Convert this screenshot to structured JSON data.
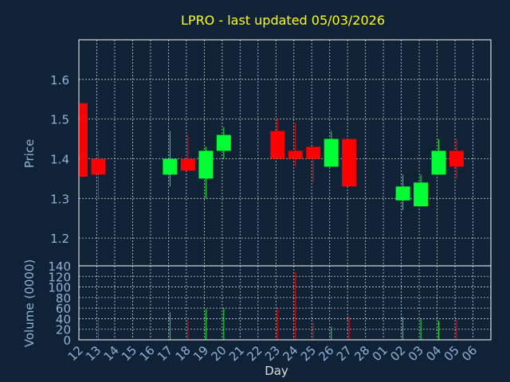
{
  "chart_data": {
    "type": "candlestick",
    "title": "LPRO - last updated 05/03/2026",
    "xlabel": "Day",
    "ylabel": "Price",
    "volume_label": "Volume (0000)",
    "grid": true,
    "colors": {
      "background": "#0f2236",
      "axis": "#ffffff",
      "grid": "#cccccc",
      "label": "#8fb3d9",
      "title": "#ffff00",
      "up": "#00ff33",
      "down": "#ff0000"
    },
    "price_axis": {
      "ylim": [
        1.13,
        1.7
      ],
      "ticks": [
        "1.2",
        "1.3",
        "1.4",
        "1.5",
        "1.6"
      ]
    },
    "volume_axis": {
      "ylim": [
        0,
        140
      ],
      "ticks": [
        "0",
        "20",
        "40",
        "60",
        "80",
        "100",
        "120",
        "140"
      ]
    },
    "x_ticks": [
      "12",
      "13",
      "14",
      "15",
      "16",
      "17",
      "18",
      "19",
      "20",
      "21",
      "22",
      "23",
      "24",
      "25",
      "26",
      "27",
      "28",
      "01",
      "02",
      "03",
      "04",
      "05",
      "06"
    ],
    "candles": [
      {
        "day": "12",
        "open": 1.54,
        "high": 1.54,
        "low": 1.355,
        "close": 1.355,
        "volume": 0
      },
      {
        "day": "13",
        "open": 1.4,
        "high": 1.42,
        "low": 1.3,
        "close": 1.36,
        "volume": 38
      },
      {
        "day": "17",
        "open": 1.36,
        "high": 1.47,
        "low": 1.33,
        "close": 1.4,
        "volume": 52
      },
      {
        "day": "18",
        "open": 1.4,
        "high": 1.46,
        "low": 1.37,
        "close": 1.37,
        "volume": 36
      },
      {
        "day": "19",
        "open": 1.35,
        "high": 1.43,
        "low": 1.3,
        "close": 1.42,
        "volume": 58
      },
      {
        "day": "20",
        "open": 1.42,
        "high": 1.48,
        "low": 1.4,
        "close": 1.46,
        "volume": 60
      },
      {
        "day": "23",
        "open": 1.47,
        "high": 1.5,
        "low": 1.4,
        "close": 1.4,
        "volume": 58
      },
      {
        "day": "24",
        "open": 1.42,
        "high": 1.49,
        "low": 1.38,
        "close": 1.4,
        "volume": 128
      },
      {
        "day": "25",
        "open": 1.43,
        "high": 1.43,
        "low": 1.34,
        "close": 1.4,
        "volume": 33
      },
      {
        "day": "26",
        "open": 1.38,
        "high": 1.47,
        "low": 1.38,
        "close": 1.45,
        "volume": 25
      },
      {
        "day": "27",
        "open": 1.45,
        "high": 1.45,
        "low": 1.33,
        "close": 1.33,
        "volume": 43
      },
      {
        "day": "02",
        "open": 1.295,
        "high": 1.36,
        "low": 1.27,
        "close": 1.33,
        "volume": 43
      },
      {
        "day": "03",
        "open": 1.28,
        "high": 1.36,
        "low": 1.28,
        "close": 1.34,
        "volume": 40
      },
      {
        "day": "04",
        "open": 1.36,
        "high": 1.45,
        "low": 1.36,
        "close": 1.42,
        "volume": 36
      },
      {
        "day": "05",
        "open": 1.42,
        "high": 1.45,
        "low": 1.35,
        "close": 1.38,
        "volume": 38
      }
    ]
  }
}
